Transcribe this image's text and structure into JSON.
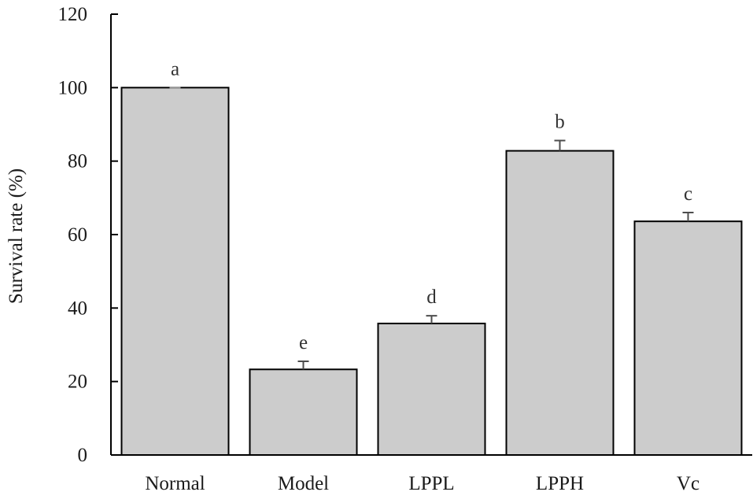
{
  "chart_data": {
    "type": "bar",
    "title": "",
    "xlabel": "",
    "ylabel": "Survival rate (%)",
    "categories": [
      "Normal",
      "Model",
      "LPPL",
      "LPPH",
      "Vc"
    ],
    "values": [
      100,
      23.3,
      35.8,
      82.8,
      63.6
    ],
    "error": [
      0,
      2.2,
      2.1,
      2.8,
      2.4
    ],
    "significance_letters": [
      "a",
      "e",
      "d",
      "b",
      "c"
    ],
    "ylim": [
      0,
      120
    ],
    "yticks": [
      0,
      20,
      40,
      60,
      80,
      100,
      120
    ],
    "grid": false,
    "legend": "none",
    "bar_color": "#cccccc",
    "bar_edge_color": "#000000",
    "axis_color": "#000000"
  }
}
